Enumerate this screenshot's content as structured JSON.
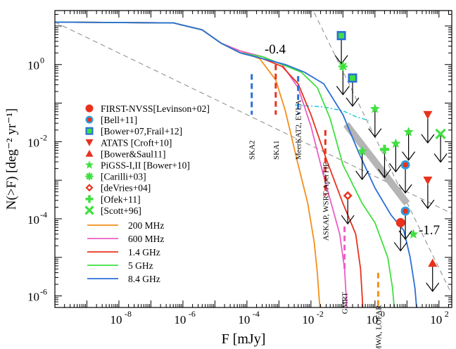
{
  "chart_data": {
    "type": "line",
    "title": "",
    "xlabel": "F [mJy]",
    "ylabel": "N(>F) [deg⁻² yr⁻¹]",
    "xscale": "log",
    "yscale": "log",
    "xlim_log10": [
      -10,
      2.4
    ],
    "ylim_log10": [
      -6.3,
      1.4
    ],
    "xticks": [
      {
        "log": -8,
        "label": "10",
        "exp": "-8"
      },
      {
        "log": -6,
        "label": "10",
        "exp": "-6"
      },
      {
        "log": -4,
        "label": "10",
        "exp": "-4"
      },
      {
        "log": -2,
        "label": "10",
        "exp": "-2"
      },
      {
        "log": 0,
        "label": "10",
        "exp": "0"
      },
      {
        "log": 2,
        "label": "10",
        "exp": "2"
      }
    ],
    "yticks": [
      {
        "log": 0,
        "label": "10",
        "exp": "0"
      },
      {
        "log": -2,
        "label": "10",
        "exp": "-2"
      },
      {
        "log": -4,
        "label": "10",
        "exp": "-4"
      },
      {
        "log": -6,
        "label": "10",
        "exp": "-6"
      }
    ],
    "series": [
      {
        "name": "200 MHz",
        "color": "#f39019",
        "logx": [
          -10,
          -6.3,
          -5.4,
          -4.8,
          -4.2,
          -3.6,
          -3.1,
          -2.8,
          -2.4,
          -2.1,
          -1.9,
          -1.8,
          -1.75,
          -1.72
        ],
        "logy": [
          1.1,
          1.08,
          0.9,
          0.55,
          0.35,
          0.15,
          -0.4,
          -1.2,
          -2.6,
          -3.6,
          -4.6,
          -5.4,
          -6.0,
          -6.3
        ]
      },
      {
        "name": "600 MHz",
        "color": "#ec5dc6",
        "logx": [
          -10,
          -6.3,
          -5.4,
          -4.8,
          -4.2,
          -3.5,
          -2.9,
          -2.4,
          -2.0,
          -1.6,
          -1.3,
          -1.1,
          -0.95,
          -0.9,
          -0.88
        ],
        "logy": [
          1.1,
          1.08,
          0.9,
          0.55,
          0.35,
          0.2,
          0.0,
          -0.6,
          -1.6,
          -2.9,
          -3.8,
          -4.4,
          -5.3,
          -6.0,
          -6.3
        ]
      },
      {
        "name": "1.4 GHz",
        "color": "#e8321e",
        "logx": [
          -10,
          -6.3,
          -5.4,
          -4.8,
          -4.2,
          -3.5,
          -2.9,
          -2.4,
          -2.0,
          -1.5,
          -1.0,
          -0.6,
          -0.45,
          -0.4,
          -0.38
        ],
        "logy": [
          1.1,
          1.08,
          0.9,
          0.55,
          0.3,
          0.15,
          -0.05,
          -0.5,
          -1.3,
          -2.5,
          -3.6,
          -4.4,
          -5.3,
          -6.0,
          -6.3
        ]
      },
      {
        "name": "5 GHz",
        "color": "#3fe03f",
        "logx": [
          -10,
          -6.3,
          -5.4,
          -4.8,
          -4.2,
          -3.5,
          -2.9,
          -2.3,
          -1.8,
          -1.4,
          -1.0,
          -0.4,
          0.0,
          0.4,
          0.55,
          0.6
        ],
        "logy": [
          1.1,
          1.08,
          0.9,
          0.55,
          0.3,
          0.2,
          0.0,
          -0.2,
          -0.6,
          -1.4,
          -2.6,
          -3.6,
          -4.1,
          -5.0,
          -5.8,
          -6.3
        ]
      },
      {
        "name": "8.4 GHz",
        "color": "#2b6fd6",
        "logx": [
          -10,
          -6.3,
          -5.4,
          -4.8,
          -4.2,
          -3.5,
          -2.8,
          -2.2,
          -1.6,
          -1.0,
          -0.5,
          0.0,
          0.5,
          0.9,
          1.1,
          1.25,
          1.3
        ],
        "logy": [
          1.1,
          1.08,
          0.9,
          0.55,
          0.3,
          0.15,
          0.0,
          -0.2,
          -0.5,
          -1.3,
          -2.3,
          -3.2,
          -3.9,
          -4.3,
          -5.0,
          -5.8,
          -6.3
        ]
      }
    ],
    "reference_lines": [
      {
        "label": "-0.4",
        "slope": -0.4,
        "x0": -10,
        "y0": 1.1
      },
      {
        "label": "-1.7",
        "slope": -1.7,
        "x0": 0,
        "y0": -1.88
      }
    ],
    "dashed_cyan_logx": [
      -2.5,
      -1.6,
      -1.0,
      -0.6,
      -0.2
    ],
    "dashed_cyan_logy": [
      -1.05,
      -1.1,
      -1.2,
      -1.35,
      -1.45
    ],
    "gray_band_logx": [
      -0.9,
      1.0
    ],
    "gray_band_logy": [
      -1.55,
      -3.6
    ],
    "survey_limits": [
      {
        "label": "SKA2",
        "logx": -3.85,
        "ytop": -0.25,
        "ybot": -1.3,
        "color": "#2b6fd6"
      },
      {
        "label": "SKA1",
        "logx": -3.1,
        "ytop": 0.0,
        "ybot": -1.3,
        "color": "#e8321e"
      },
      {
        "label": "MeerKAT2, EVLA",
        "logx": -2.4,
        "ytop": -0.3,
        "ybot": -1.3,
        "color": "#2b6fd6"
      },
      {
        "label": "ASKAP, WSRT-AperTIF",
        "logx": -1.55,
        "ytop": -1.7,
        "ybot": -3.4,
        "color": "#e8321e"
      },
      {
        "label": "GMRT",
        "logx": -0.95,
        "ytop": -4.2,
        "ybot": -5.3,
        "color": "#ec5dc6"
      },
      {
        "label": "MWA, LOFAR",
        "logx": 0.1,
        "ytop": -5.4,
        "ybot": -6.3,
        "color": "#f39019"
      }
    ],
    "legend": {
      "placement": "middle-left",
      "markers": [
        {
          "label": "FIRST-NVSS[Levinson+02]",
          "symbol": "circle",
          "color": "#e8321e"
        },
        {
          "label": "[Bell+11]",
          "symbol": "ring",
          "color": "#e8321e"
        },
        {
          "label": "[Bower+07,Frail+12]",
          "symbol": "square",
          "color": "#2b6fd6"
        },
        {
          "label": "ATATS [Croft+10]",
          "symbol": "triangle-down",
          "color": "#e8321e"
        },
        {
          "label": "[Bower&Saul11]",
          "symbol": "triangle-up",
          "color": "#e8321e"
        },
        {
          "label": "PiGSS-I,II [Bower+10]",
          "symbol": "star",
          "color": "#3fe03f"
        },
        {
          "label": "[Carilli+03]",
          "symbol": "asterisk",
          "color": "#3fe03f"
        },
        {
          "label": "[deVries+04]",
          "symbol": "diamond",
          "color": "#e8321e"
        },
        {
          "label": "[Ofek+11]",
          "symbol": "plus",
          "color": "#3fe03f"
        },
        {
          "label": "[Scott+96]",
          "symbol": "cross",
          "color": "#3fe03f"
        }
      ],
      "lines": [
        {
          "label": "200 MHz",
          "color": "#f39019"
        },
        {
          "label": "600 MHz",
          "color": "#ec5dc6"
        },
        {
          "label": "1.4 GHz",
          "color": "#e8321e"
        },
        {
          "label": "5 GHz",
          "color": "#3fe03f"
        },
        {
          "label": "8.4 GHz",
          "color": "#2b6fd6"
        }
      ]
    },
    "points": [
      {
        "symbol": "square",
        "logx": -1.05,
        "logy": 0.75,
        "arrow": true
      },
      {
        "symbol": "square",
        "logx": -0.7,
        "logy": -0.35,
        "arrow": true
      },
      {
        "symbol": "asterisk",
        "logx": -1.0,
        "logy": -0.05,
        "arrow": true
      },
      {
        "symbol": "star",
        "logx": -0.4,
        "logy": -2.25,
        "arrow": true
      },
      {
        "symbol": "star",
        "logx": 0.0,
        "logy": -1.15,
        "arrow": true
      },
      {
        "symbol": "plus",
        "logx": 0.3,
        "logy": -2.2,
        "arrow": true
      },
      {
        "symbol": "star",
        "logx": 0.65,
        "logy": -2.05,
        "arrow": true
      },
      {
        "symbol": "star",
        "logx": 1.05,
        "logy": -1.75,
        "arrow": true
      },
      {
        "symbol": "star",
        "logx": 1.2,
        "logy": -4.4,
        "arrow": false
      },
      {
        "symbol": "diamond",
        "logx": -0.85,
        "logy": -3.4,
        "arrow": true
      },
      {
        "symbol": "ring",
        "logx": 0.95,
        "logy": -2.6,
        "arrow": true
      },
      {
        "symbol": "ring",
        "logx": 0.95,
        "logy": -3.8,
        "arrow": true
      },
      {
        "symbol": "circle",
        "logx": 0.8,
        "logy": -4.1,
        "arrow": true
      },
      {
        "symbol": "triangle-down",
        "logx": 1.65,
        "logy": -1.3,
        "arrow": true
      },
      {
        "symbol": "triangle-down",
        "logx": 1.65,
        "logy": -3.0,
        "arrow": true
      },
      {
        "symbol": "triangle-up",
        "logx": 1.8,
        "logy": -5.15,
        "arrow": true
      },
      {
        "symbol": "cross",
        "logx": 2.05,
        "logy": -1.8,
        "arrow": true
      }
    ]
  }
}
